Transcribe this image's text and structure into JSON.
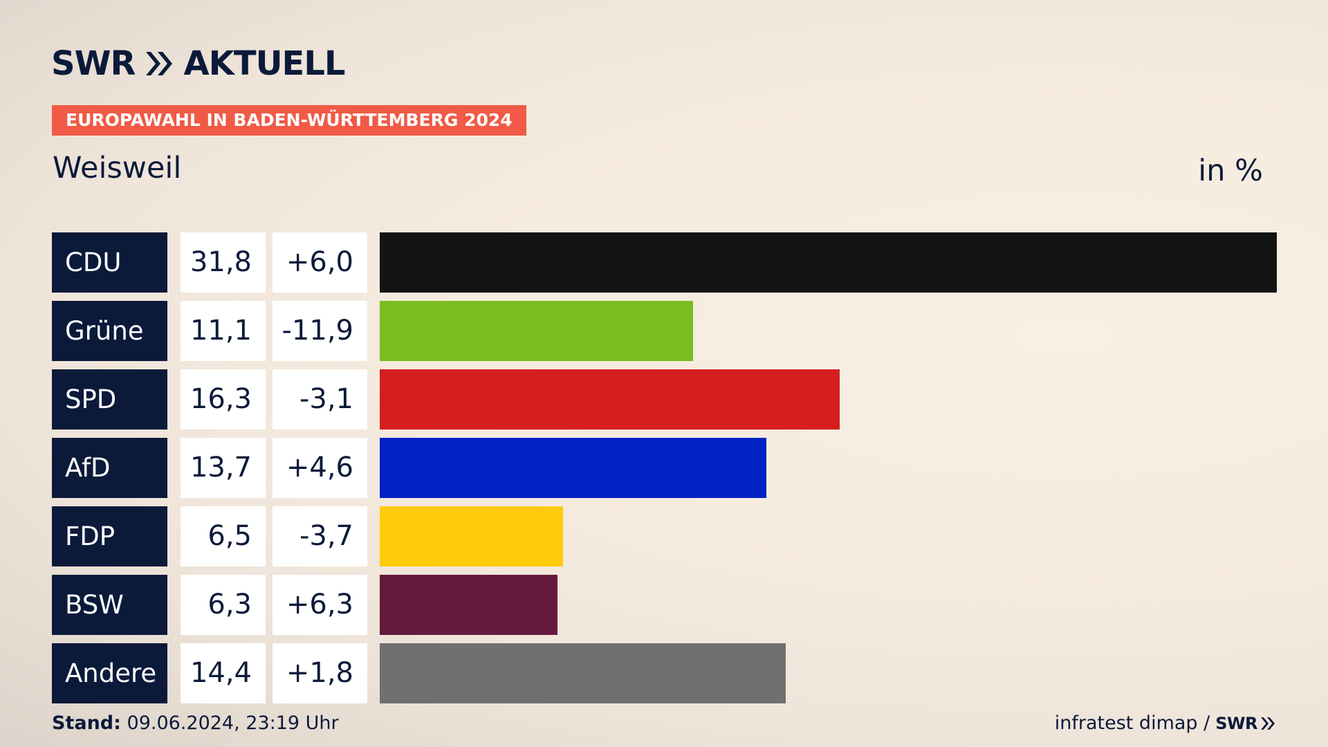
{
  "header": {
    "logo_text": "SWR",
    "logo_suffix": "AKTUELL",
    "badge": "EUROPAWAHL IN BADEN-WÜRTTEMBERG 2024",
    "title": "Weisweil",
    "unit": "in %"
  },
  "chart_data": {
    "type": "bar",
    "orientation": "horizontal",
    "categories": [
      "CDU",
      "Grüne",
      "SPD",
      "AfD",
      "FDP",
      "BSW",
      "Andere"
    ],
    "values": [
      31.8,
      11.1,
      16.3,
      13.7,
      6.5,
      6.3,
      14.4
    ],
    "value_labels": [
      "31,8",
      "11,1",
      "16,3",
      "13,7",
      "6,5",
      "6,3",
      "14,4"
    ],
    "diff_labels": [
      "+6,0",
      "-11,9",
      "-3,1",
      "+4,6",
      "-3,7",
      "+6,3",
      "+1,8"
    ],
    "colors": [
      "#141414",
      "#7abd1d",
      "#d51f1f",
      "#0022c4",
      "#fdcb0a",
      "#651a3c",
      "#707070"
    ],
    "xlim": [
      0,
      31.8
    ]
  },
  "footer": {
    "stand_label": "Stand:",
    "stand_value": "09.06.2024, 23:19 Uhr",
    "source": "infratest dimap /",
    "source_logo": "SWR"
  }
}
